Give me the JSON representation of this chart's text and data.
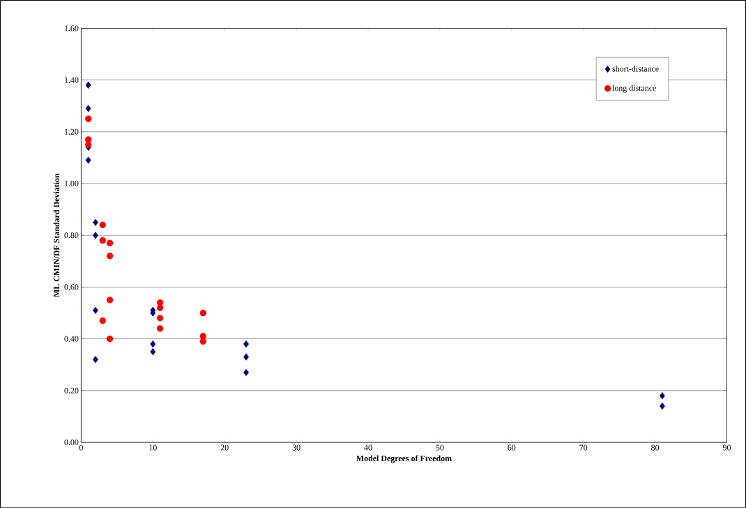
{
  "chart_data": {
    "type": "scatter",
    "xlabel": "Model Degrees of Freedom",
    "ylabel": "ML CMIN/DF Standard Deviation",
    "xlim": [
      0,
      90
    ],
    "xticks": [
      0,
      10,
      20,
      30,
      40,
      50,
      60,
      70,
      80,
      90
    ],
    "ylim": [
      0,
      1.6
    ],
    "yticks": [
      {
        "value": 0,
        "label": "0.00"
      },
      {
        "value": 0.2,
        "label": "0.20"
      },
      {
        "value": 0.4,
        "label": "0.40"
      },
      {
        "value": 0.6,
        "label": "0.60"
      },
      {
        "value": 0.8,
        "label": "0.80"
      },
      {
        "value": 1.0,
        "label": "1.00"
      },
      {
        "value": 1.2,
        "label": "1.20"
      },
      {
        "value": 1.4,
        "label": "1.40"
      },
      {
        "value": 1.6,
        "label": "1.60"
      }
    ],
    "grid": "y",
    "legend": "top right",
    "series": [
      {
        "name": "short-distance",
        "color": "#000080",
        "marker": "diamond",
        "x": [
          1,
          1,
          1,
          1,
          2,
          2,
          2,
          2,
          10,
          10,
          10,
          10,
          23,
          23,
          23,
          81,
          81
        ],
        "values": [
          1.38,
          1.29,
          1.14,
          1.09,
          0.85,
          0.8,
          0.51,
          0.32,
          0.51,
          0.5,
          0.38,
          0.35,
          0.38,
          0.33,
          0.27,
          0.18,
          0.14
        ]
      },
      {
        "name": "long distance",
        "color": "#ff0000",
        "marker": "circle",
        "x": [
          1,
          1,
          1,
          3,
          3,
          3,
          4,
          4,
          4,
          4,
          11,
          11,
          11,
          11,
          17,
          17,
          17
        ],
        "values": [
          1.25,
          1.17,
          1.15,
          0.84,
          0.78,
          0.47,
          0.77,
          0.72,
          0.55,
          0.4,
          0.54,
          0.52,
          0.48,
          0.44,
          0.5,
          0.41,
          0.39
        ]
      }
    ]
  }
}
